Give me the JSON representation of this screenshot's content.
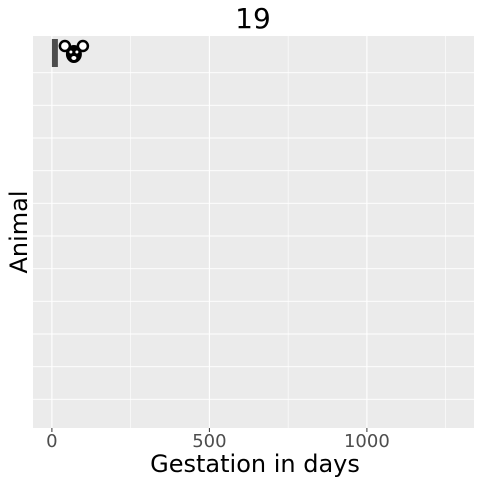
{
  "chart_data": {
    "type": "bar",
    "orientation": "horizontal",
    "title": "19",
    "xlabel": "Gestation in days",
    "ylabel": "Animal",
    "xlim": [
      -60,
      1340
    ],
    "x_ticks": [
      0,
      500,
      1000
    ],
    "x_tick_labels": [
      "0",
      "500",
      "1000"
    ],
    "grid": true,
    "background": "#ebebeb",
    "bar_color": "#4d4d4d",
    "series": [
      {
        "values": [
          19
        ],
        "icons": [
          "mouse-icon"
        ]
      }
    ]
  }
}
